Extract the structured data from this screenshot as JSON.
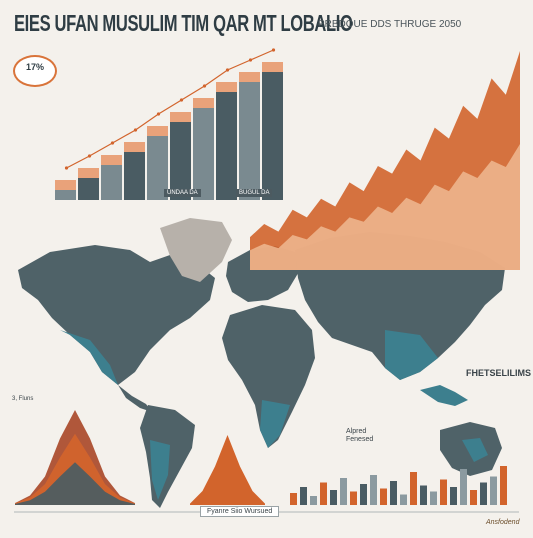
{
  "title": "EIES UFAN MUSULIM TIM QAR MT LOBALIO",
  "subtitle": "PRBDOUE DDS THRUGE 2050",
  "stat": "17%",
  "labels": {
    "panel_a": "UNDAA DA",
    "panel_b": "BUGUL DA",
    "legend_right": "FHETSELILIMS",
    "series_caption": "Alpred Fenesed",
    "bottom_caption": "Fyanre Siio Wursued",
    "left_axis_note": "3, Fluns",
    "brand": "Ansfodend"
  },
  "colors": {
    "orange": "#d2642c",
    "rust": "#a94a2a",
    "slate": "#4a5c63",
    "teal": "#3d7f8e",
    "peach": "#e9a27a",
    "bg": "#f4f1ec"
  },
  "chart_data": [
    {
      "type": "bar",
      "categories": [
        "1",
        "2",
        "3",
        "4",
        "5",
        "6",
        "7",
        "8",
        "9",
        "10"
      ],
      "series": [
        {
          "values": [
            20,
            32,
            45,
            58,
            74,
            88,
            102,
            118,
            128,
            138
          ]
        }
      ],
      "ylim": [
        0,
        150
      ]
    },
    {
      "type": "area",
      "x": [
        1,
        2,
        3,
        4,
        5,
        6,
        7,
        8,
        9,
        10,
        11,
        12,
        13,
        14,
        15,
        16,
        17,
        18,
        19,
        20
      ],
      "series": [
        {
          "values": [
            30,
            42,
            35,
            55,
            48,
            65,
            58,
            80,
            72,
            95,
            88,
            110,
            100,
            130,
            120,
            150,
            138,
            175,
            160,
            200
          ]
        },
        {
          "values": [
            18,
            24,
            20,
            32,
            28,
            40,
            35,
            48,
            44,
            58,
            52,
            66,
            60,
            78,
            72,
            90,
            84,
            100,
            94,
            115
          ]
        }
      ],
      "ylim": [
        0,
        210
      ]
    },
    {
      "type": "area",
      "x": [
        0,
        1,
        2,
        3,
        4,
        5,
        6,
        7,
        8
      ],
      "series": [
        {
          "values": [
            2,
            10,
            30,
            70,
            100,
            70,
            30,
            10,
            2
          ]
        },
        {
          "values": [
            2,
            8,
            22,
            50,
            75,
            50,
            22,
            8,
            2
          ]
        },
        {
          "values": [
            1,
            5,
            14,
            30,
            45,
            30,
            14,
            5,
            1
          ]
        }
      ],
      "ylim": [
        0,
        100
      ]
    },
    {
      "type": "area",
      "x": [
        0,
        1,
        2,
        3,
        4,
        5,
        6
      ],
      "series": [
        {
          "values": [
            2,
            20,
            55,
            100,
            55,
            20,
            2
          ]
        }
      ],
      "ylim": [
        0,
        100
      ]
    },
    {
      "type": "bar",
      "categories": [
        "1",
        "2",
        "3",
        "4",
        "5",
        "6",
        "7",
        "8",
        "9",
        "10",
        "11",
        "12",
        "13",
        "14",
        "15",
        "16",
        "17",
        "18",
        "19",
        "20",
        "21",
        "22"
      ],
      "series": [
        {
          "values": [
            8,
            12,
            6,
            15,
            10,
            18,
            9,
            14,
            20,
            11,
            16,
            7,
            22,
            13,
            9,
            17,
            12,
            24,
            10,
            15,
            19,
            26
          ]
        }
      ],
      "ylim": [
        0,
        30
      ]
    }
  ]
}
